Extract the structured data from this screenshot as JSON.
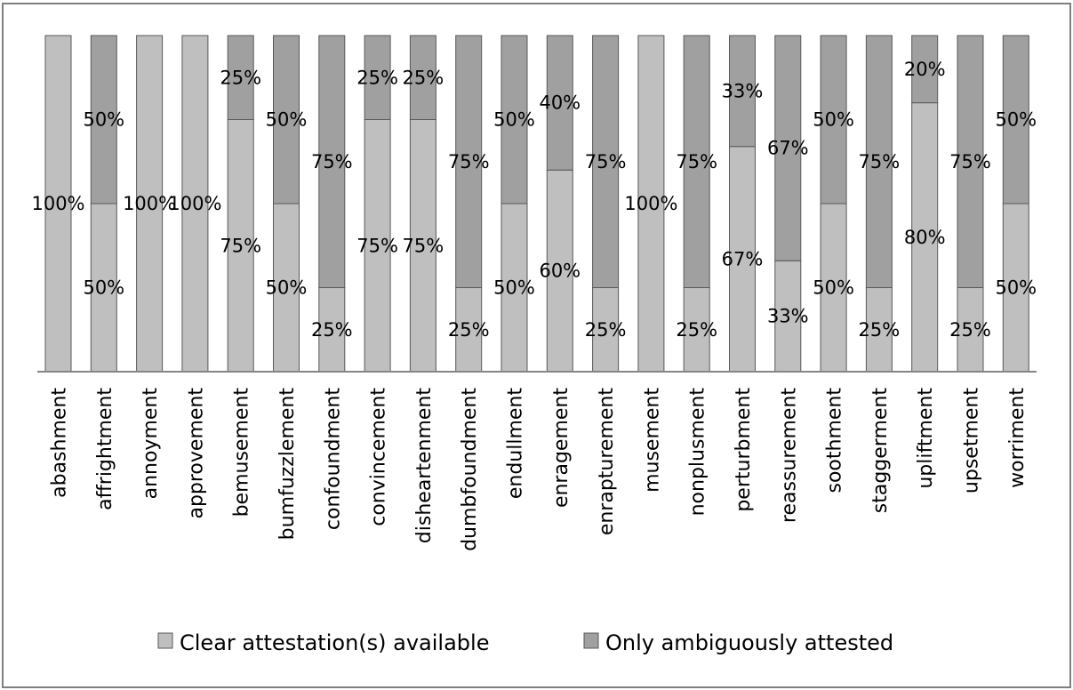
{
  "chart_data": {
    "type": "bar",
    "stacked": true,
    "normalized": true,
    "categories": [
      "abashment",
      "affrightment",
      "annoyment",
      "approvement",
      "bemusement",
      "bumfuzzlement",
      "confoundment",
      "convincement",
      "disheartenment",
      "dumbfoundment",
      "endullment",
      "enragement",
      "enrapturement",
      "musement",
      "nonplusment",
      "perturbment",
      "reassurement",
      "soothment",
      "staggerment",
      "upliftment",
      "upsetment",
      "worriment"
    ],
    "series": [
      {
        "name": "Clear attestation(s) available",
        "values": [
          100,
          50,
          100,
          100,
          75,
          50,
          25,
          75,
          75,
          25,
          50,
          60,
          25,
          100,
          25,
          67,
          33,
          50,
          25,
          80,
          25,
          50
        ],
        "color": "#bfbfbf"
      },
      {
        "name": "Only ambiguously attested",
        "values": [
          0,
          50,
          0,
          0,
          25,
          50,
          75,
          25,
          25,
          75,
          50,
          40,
          75,
          0,
          75,
          33,
          67,
          50,
          75,
          20,
          75,
          50
        ],
        "color": "#a0a0a0"
      }
    ],
    "value_suffix": "%",
    "ylim": [
      0,
      100
    ],
    "grid": false,
    "legend_position": "bottom"
  }
}
